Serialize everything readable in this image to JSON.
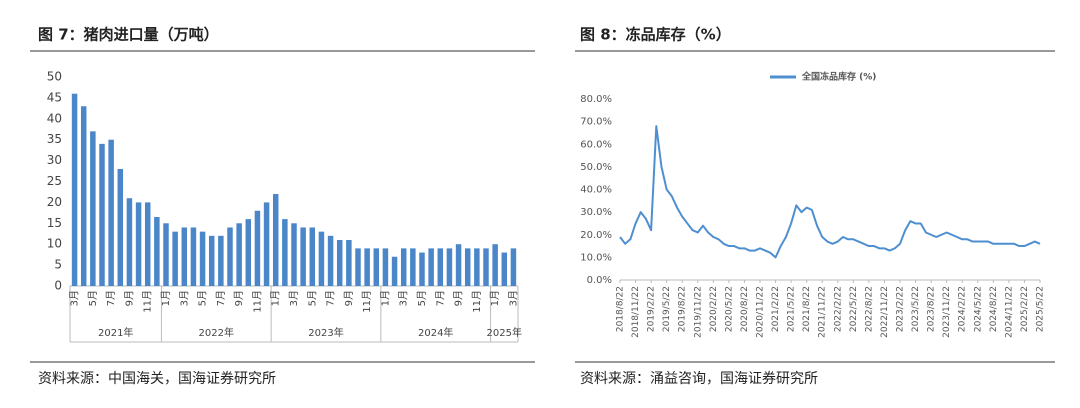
{
  "chart_data": [
    {
      "type": "bar",
      "title": "图 7：猪肉进口量（万吨）",
      "source": "资料来源：中国海关，国海证券研究所",
      "color": "#4a86c8",
      "groups": [
        {
          "label": "2021年",
          "categories": [
            "3月",
            null,
            "5月",
            null,
            "7月",
            null,
            "9月",
            null,
            "11月",
            null
          ]
        },
        {
          "label": "2022年",
          "categories": [
            "1月",
            null,
            "3月",
            null,
            "5月",
            null,
            "7月",
            null,
            "9月",
            null,
            "11月",
            null
          ]
        },
        {
          "label": "2023年",
          "categories": [
            "1月",
            null,
            "3月",
            null,
            "5月",
            null,
            "7月",
            null,
            "9月",
            null,
            "11月",
            null
          ]
        },
        {
          "label": "2024年",
          "categories": [
            "1月",
            null,
            "3月",
            null,
            "5月",
            null,
            "7月",
            null,
            "9月",
            null,
            "11月",
            null
          ]
        },
        {
          "label": "2025年",
          "categories": [
            "1月",
            null,
            "3月"
          ]
        }
      ],
      "values": [
        46,
        43,
        37,
        34,
        35,
        28,
        21,
        20,
        20,
        16.5,
        15,
        13,
        14,
        14,
        13,
        12,
        12,
        14,
        15,
        16,
        18,
        20,
        22,
        16,
        15,
        14,
        14,
        13,
        12,
        11,
        11,
        9,
        9,
        9,
        9,
        7,
        9,
        9,
        8,
        9,
        9,
        9,
        10,
        9,
        9,
        9,
        10,
        8,
        9
      ],
      "ylim": [
        0,
        50
      ],
      "yticks": [
        0,
        5,
        10,
        15,
        20,
        25,
        30,
        35,
        40,
        45,
        50
      ],
      "grid": false
    },
    {
      "type": "line",
      "title": "图 8：冻品库存（%）",
      "source": "资料来源：涌益咨询，国海证券研究所",
      "categories": [
        "2018/8/22",
        null,
        null,
        "2018/11/22",
        null,
        null,
        "2019/2/22",
        null,
        null,
        "2019/5/22",
        null,
        null,
        "2019/8/22",
        null,
        null,
        "2019/11/22",
        null,
        null,
        "2020/2/22",
        null,
        null,
        "2020/5/22",
        null,
        null,
        "2020/8/22",
        null,
        null,
        "2020/11/22",
        null,
        null,
        "2021/2/22",
        null,
        null,
        "2021/5/22",
        null,
        null,
        "2021/8/22",
        null,
        null,
        "2021/11/22",
        null,
        null,
        "2022/2/22",
        null,
        null,
        "2022/5/22",
        null,
        null,
        "2022/8/22",
        null,
        null,
        "2022/11/22",
        null,
        null,
        "2023/2/22",
        null,
        null,
        "2023/5/22",
        null,
        null,
        "2023/8/22",
        null,
        null,
        "2023/11/22",
        null,
        null,
        "2024/2/22",
        null,
        null,
        "2024/5/22",
        null,
        null,
        "2024/8/22",
        null,
        null,
        "2024/11/22",
        null,
        null,
        "2025/2/22",
        null,
        null,
        "2025/5/22"
      ],
      "series": [
        {
          "name": "全国冻品库存 (%)",
          "color": "#4e8fd0",
          "values": [
            19,
            16,
            18,
            25,
            30,
            27,
            22,
            68,
            50,
            40,
            37,
            32,
            28,
            25,
            22,
            21,
            24,
            21,
            19,
            18,
            16,
            15,
            15,
            14,
            14,
            13,
            13,
            14,
            13,
            12,
            10,
            15,
            19,
            25,
            33,
            30,
            32,
            31,
            24,
            19,
            17,
            16,
            17,
            19,
            18,
            18,
            17,
            16,
            15,
            15,
            14,
            14,
            13,
            14,
            16,
            22,
            26,
            25,
            25,
            21,
            20,
            19,
            20,
            21,
            20,
            19,
            18,
            18,
            17,
            17,
            17,
            17,
            16,
            16,
            16,
            16,
            16,
            15,
            15,
            16,
            17,
            16
          ]
        }
      ],
      "ylim": [
        0,
        80
      ],
      "yticks": [
        {
          "value": 0,
          "label": "0.0%"
        },
        {
          "value": 10,
          "label": "10.0%"
        },
        {
          "value": 20,
          "label": "20.0%"
        },
        {
          "value": 30,
          "label": "30.0%"
        },
        {
          "value": 40,
          "label": "40.0%"
        },
        {
          "value": 50,
          "label": "50.0%"
        },
        {
          "value": 60,
          "label": "60.0%"
        },
        {
          "value": 70,
          "label": "70.0%"
        },
        {
          "value": 80,
          "label": "80.0%"
        }
      ],
      "grid": false,
      "legend": "top"
    }
  ]
}
